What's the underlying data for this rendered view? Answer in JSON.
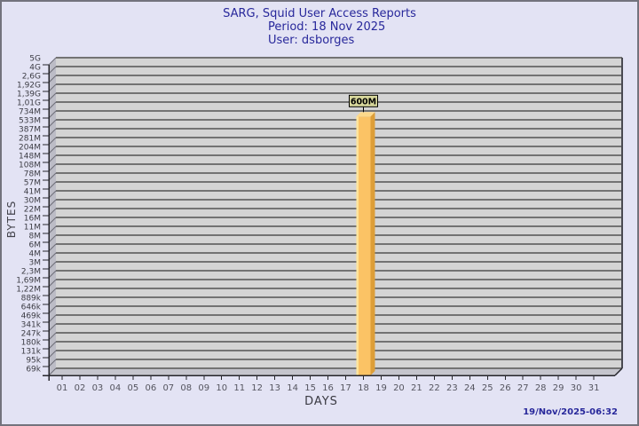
{
  "header": {
    "title": "SARG, Squid User Access Reports",
    "period": "Period: 18 Nov 2025",
    "user": "User: dsborges"
  },
  "footer": {
    "timestamp": "19/Nov/2025-06:32"
  },
  "chart_data": {
    "type": "bar",
    "title": "SARG, Squid User Access Reports",
    "subtitle": [
      "Period: 18 Nov 2025",
      "User: dsborges"
    ],
    "xlabel": "DAYS",
    "ylabel": "BYTES",
    "scale": "log",
    "grid": "horizontal",
    "style": "3d-bar",
    "x_categories": [
      "01",
      "02",
      "03",
      "04",
      "05",
      "06",
      "07",
      "08",
      "09",
      "10",
      "11",
      "12",
      "13",
      "14",
      "15",
      "16",
      "17",
      "18",
      "19",
      "20",
      "21",
      "22",
      "23",
      "24",
      "25",
      "26",
      "27",
      "28",
      "29",
      "30",
      "31"
    ],
    "y_tick_labels": [
      "5G",
      "4G",
      "2,6G",
      "1,92G",
      "1,39G",
      "1,01G",
      "734M",
      "533M",
      "387M",
      "281M",
      "204M",
      "148M",
      "108M",
      "78M",
      "57M",
      "41M",
      "30M",
      "22M",
      "16M",
      "11M",
      "8M",
      "6M",
      "4M",
      "3M",
      "2,3M",
      "1,69M",
      "1,22M",
      "889k",
      "646k",
      "469k",
      "341k",
      "247k",
      "180k",
      "131k",
      "95k",
      "69k"
    ],
    "y_axis_min_bytes": 69000,
    "y_axis_max_bytes": 5000000000,
    "bars": [
      {
        "day": "18",
        "value_label": "600M",
        "value_bytes": 600000000
      }
    ],
    "colors": {
      "background": "#E3E3F4",
      "border": "#73737D",
      "title_text": "#28289B",
      "plot_bg": "#D4D4D4",
      "gridline": "#737373",
      "wall": "#BCBCC6",
      "wall_line": "#6D6D77",
      "floor": "#C5C5CD",
      "axis": "#26262C",
      "right_edge": "#4A4A52",
      "bar_front": "#FBC365",
      "bar_side": "#DD9E38",
      "bar_top": "#FDD98B",
      "bar_highlight": "#FFE59C",
      "value_label_bg": "#D8D89C",
      "value_label_border": "#000000",
      "value_label_text": "#000000",
      "y_label_color": "#3C3C44",
      "x_label_color": "#55555F"
    }
  }
}
